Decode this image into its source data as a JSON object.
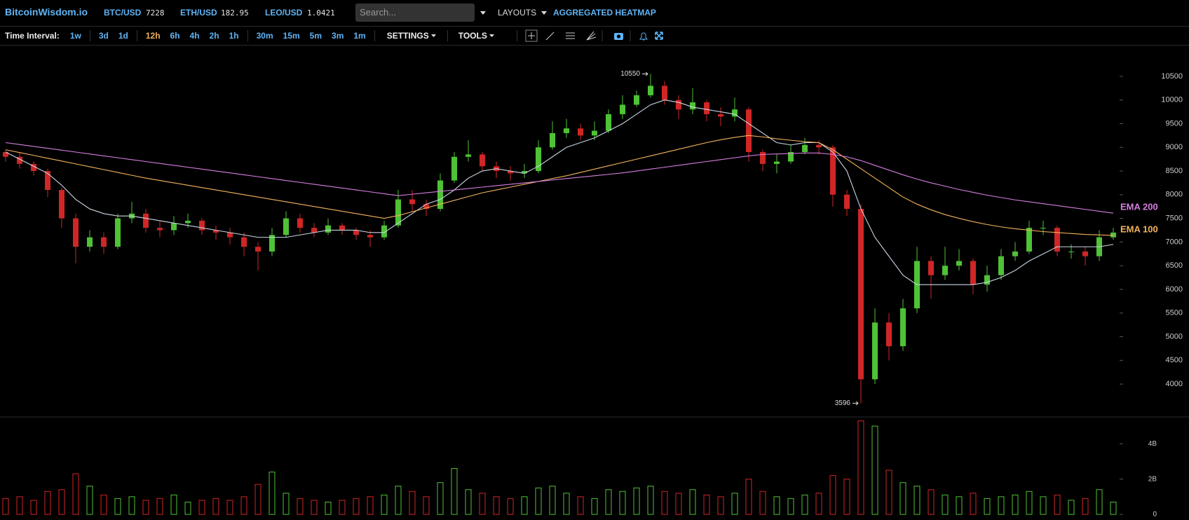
{
  "header": {
    "logo": "BitcoinWisdom.io",
    "tickers": [
      {
        "symbol": "BTC/USD",
        "price": 7228
      },
      {
        "symbol": "ETH/USD",
        "price": 182.95
      },
      {
        "symbol": "LEO/USD",
        "price": 1.0421
      }
    ],
    "search_placeholder": "Search...",
    "layouts": "LAYOUTS",
    "heatmap": "AGGREGATED HEATMAP"
  },
  "toolbar": {
    "label": "Time Interval:",
    "intervals": [
      "1w",
      "3d",
      "1d",
      "12h",
      "6h",
      "4h",
      "2h",
      "1h",
      "30m",
      "15m",
      "5m",
      "3m",
      "1m"
    ],
    "active_interval": 3,
    "settings": "SETTINGS",
    "tools": "TOOLS"
  },
  "chart_data": {
    "type": "candlestick",
    "up_color": "#4fc236",
    "down_color": "#d02626",
    "open": [
      8900,
      8800,
      8650,
      8500,
      8100,
      7500,
      6900,
      7100,
      6900,
      7500,
      7600,
      7300,
      7250,
      7400,
      7450,
      7250,
      7200,
      7100,
      6900,
      6800,
      7150,
      7500,
      7300,
      7200,
      7350,
      7250,
      7150,
      7100,
      7350,
      7900,
      7800,
      7700,
      8300,
      8800,
      8850,
      8600,
      8500,
      8450,
      8500,
      9000,
      9300,
      9400,
      9250,
      9350,
      9700,
      9900,
      10100,
      10300,
      10000,
      9800,
      9950,
      9700,
      9650,
      9800,
      8900,
      8650,
      8700,
      8900,
      9050,
      9000,
      8000,
      7700,
      4100,
      5300,
      4800,
      5600,
      6600,
      6300,
      6500,
      6600,
      6100,
      6300,
      6700,
      6800,
      7300,
      7300,
      6800,
      6800,
      6700,
      7100
    ],
    "high": [
      8950,
      8900,
      8700,
      8550,
      8150,
      7600,
      7250,
      7200,
      7600,
      7850,
      7700,
      7450,
      7550,
      7600,
      7500,
      7350,
      7300,
      7200,
      7000,
      7300,
      7650,
      7600,
      7400,
      7500,
      7400,
      7300,
      7250,
      7450,
      8100,
      8100,
      7900,
      8450,
      8900,
      9150,
      8900,
      8700,
      8600,
      8650,
      9150,
      9550,
      9600,
      9500,
      9550,
      9800,
      10100,
      10200,
      10550,
      10400,
      10100,
      10250,
      10000,
      9850,
      10050,
      9850,
      8950,
      8850,
      9050,
      9200,
      9150,
      9050,
      8100,
      7800,
      5600,
      5500,
      5800,
      6900,
      6700,
      6900,
      6850,
      6650,
      6500,
      6850,
      7000,
      7450,
      7450,
      7350,
      6950,
      6900,
      7250,
      7300
    ],
    "low": [
      8700,
      8550,
      8400,
      7950,
      7300,
      6550,
      6800,
      6750,
      6850,
      7400,
      7200,
      7100,
      7150,
      7300,
      7150,
      7050,
      6950,
      6700,
      6400,
      6700,
      7100,
      7200,
      7100,
      7150,
      7150,
      7050,
      6900,
      7050,
      7300,
      7650,
      7550,
      7650,
      8250,
      8700,
      8500,
      8350,
      8300,
      8350,
      8450,
      8950,
      9200,
      9150,
      9150,
      9300,
      9600,
      9850,
      10050,
      9900,
      9600,
      9700,
      9550,
      9450,
      9550,
      8700,
      8500,
      8450,
      8650,
      8850,
      8850,
      7750,
      7550,
      3596,
      4000,
      4500,
      4700,
      5500,
      5800,
      6200,
      6400,
      5900,
      5950,
      6200,
      6600,
      6750,
      7150,
      6700,
      6650,
      6500,
      6600,
      7050
    ],
    "close": [
      8800,
      8650,
      8500,
      8100,
      7500,
      6900,
      7100,
      6900,
      7500,
      7600,
      7300,
      7250,
      7400,
      7450,
      7250,
      7200,
      7100,
      6900,
      6800,
      7150,
      7500,
      7300,
      7200,
      7350,
      7250,
      7150,
      7100,
      7350,
      7900,
      7800,
      7700,
      8300,
      8800,
      8850,
      8600,
      8500,
      8450,
      8500,
      9000,
      9300,
      9400,
      9250,
      9350,
      9700,
      9900,
      10100,
      10300,
      10000,
      9800,
      9950,
      9700,
      9650,
      9800,
      8900,
      8650,
      8700,
      8900,
      9050,
      9000,
      8000,
      7700,
      4100,
      5300,
      4800,
      5600,
      6600,
      6300,
      6500,
      6600,
      6100,
      6300,
      6700,
      6800,
      7300,
      7300,
      6800,
      6800,
      6700,
      7100,
      7200
    ],
    "ylim": [
      3320,
      11135
    ],
    "yticks": [
      4000,
      4500,
      5000,
      5500,
      6000,
      6500,
      7000,
      7500,
      8000,
      8500,
      9000,
      9500,
      10000,
      10500
    ],
    "series": [
      {
        "color": "#c9d6e3",
        "values": [
          8900,
          8750,
          8600,
          8450,
          8200,
          7900,
          7700,
          7600,
          7550,
          7550,
          7500,
          7450,
          7400,
          7350,
          7300,
          7250,
          7200,
          7150,
          7100,
          7100,
          7100,
          7150,
          7200,
          7250,
          7250,
          7250,
          7200,
          7200,
          7400,
          7600,
          7800,
          7900,
          8100,
          8350,
          8500,
          8550,
          8500,
          8450,
          8600,
          8800,
          9000,
          9100,
          9200,
          9350,
          9500,
          9700,
          9900,
          10000,
          9950,
          9850,
          9800,
          9750,
          9700,
          9500,
          9300,
          9100,
          9050,
          9100,
          9100,
          8900,
          8500,
          7700,
          7100,
          6700,
          6300,
          6100,
          6100,
          6100,
          6100,
          6100,
          6150,
          6250,
          6400,
          6600,
          6750,
          6900,
          6900,
          6900,
          6900,
          6950
        ]
      },
      {
        "name": "EMA 100",
        "color": "#f2b35c",
        "values": [
          8950,
          8890,
          8830,
          8770,
          8710,
          8650,
          8590,
          8530,
          8470,
          8410,
          8350,
          8300,
          8250,
          8200,
          8150,
          8100,
          8050,
          8000,
          7950,
          7900,
          7850,
          7800,
          7750,
          7700,
          7650,
          7600,
          7550,
          7500,
          7560,
          7640,
          7720,
          7800,
          7880,
          7960,
          8040,
          8100,
          8160,
          8220,
          8280,
          8340,
          8400,
          8470,
          8540,
          8610,
          8680,
          8750,
          8820,
          8890,
          8960,
          9030,
          9100,
          9160,
          9210,
          9250,
          9220,
          9180,
          9150,
          9120,
          9100,
          8950,
          8750,
          8550,
          8350,
          8150,
          7950,
          7800,
          7680,
          7580,
          7500,
          7430,
          7370,
          7320,
          7280,
          7250,
          7220,
          7200,
          7180,
          7160,
          7150,
          7140
        ]
      },
      {
        "name": "EMA 200",
        "color": "#d67ee0",
        "values": [
          9100,
          9060,
          9020,
          8980,
          8940,
          8900,
          8860,
          8820,
          8780,
          8740,
          8700,
          8660,
          8620,
          8580,
          8540,
          8500,
          8460,
          8420,
          8380,
          8340,
          8300,
          8260,
          8220,
          8180,
          8140,
          8100,
          8060,
          8020,
          7980,
          8010,
          8040,
          8070,
          8100,
          8130,
          8160,
          8190,
          8220,
          8250,
          8280,
          8310,
          8340,
          8370,
          8400,
          8430,
          8460,
          8500,
          8540,
          8580,
          8620,
          8660,
          8700,
          8740,
          8780,
          8820,
          8850,
          8860,
          8870,
          8880,
          8880,
          8850,
          8800,
          8720,
          8620,
          8520,
          8420,
          8330,
          8250,
          8180,
          8110,
          8050,
          7990,
          7940,
          7890,
          7850,
          7810,
          7770,
          7730,
          7690,
          7650,
          7610
        ]
      }
    ],
    "volume": [
      0.9,
      1.0,
      0.8,
      1.3,
      1.4,
      2.3,
      1.6,
      1.1,
      0.9,
      1.0,
      0.8,
      0.9,
      1.1,
      0.7,
      0.8,
      0.9,
      0.8,
      1.0,
      1.7,
      2.4,
      1.2,
      0.9,
      0.8,
      0.7,
      0.8,
      0.9,
      1.0,
      1.1,
      1.6,
      1.3,
      1.0,
      1.8,
      2.6,
      1.4,
      1.2,
      1.0,
      0.9,
      1.0,
      1.5,
      1.6,
      1.2,
      1.0,
      0.9,
      1.4,
      1.3,
      1.5,
      1.6,
      1.3,
      1.2,
      1.4,
      1.1,
      1.0,
      1.2,
      2.0,
      1.3,
      1.0,
      0.9,
      1.1,
      1.2,
      2.2,
      2.0,
      5.3,
      5.0,
      2.5,
      1.8,
      1.6,
      1.4,
      1.1,
      1.0,
      1.2,
      0.9,
      1.0,
      1.1,
      1.3,
      1.0,
      1.1,
      0.8,
      0.9,
      1.4,
      0.7
    ],
    "vlim": [
      0,
      5.4
    ],
    "vticks": [
      0,
      {
        "value": 2,
        "label": "2B"
      },
      {
        "value": 4,
        "label": "4B"
      }
    ]
  }
}
